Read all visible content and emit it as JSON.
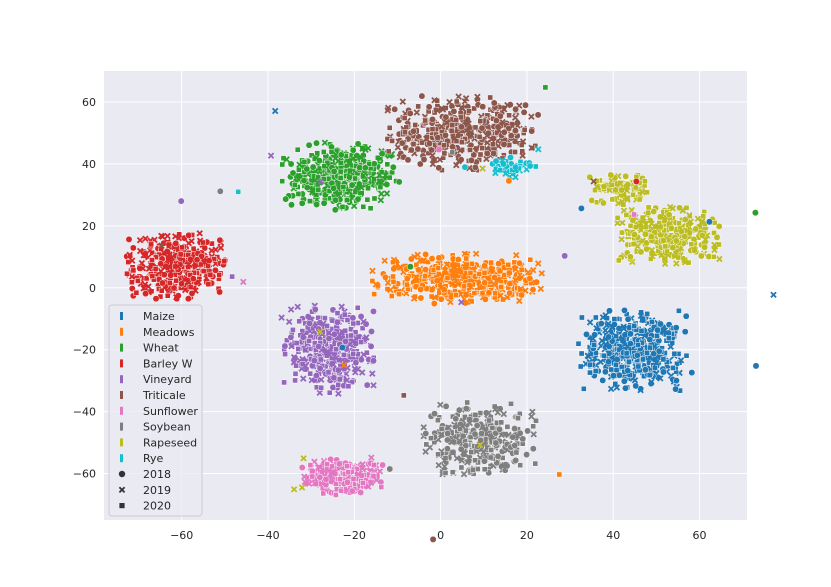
{
  "chart_data": {
    "type": "scatter",
    "title": "",
    "xlabel": "",
    "ylabel": "",
    "xlim": [
      -78,
      71
    ],
    "ylim": [
      -75,
      70
    ],
    "xticks": [
      -60,
      -40,
      -20,
      0,
      20,
      40,
      60
    ],
    "yticks": [
      -60,
      -40,
      -20,
      0,
      20,
      40,
      60
    ],
    "xtick_labels": [
      "−60",
      "−40",
      "−20",
      "0",
      "20",
      "40",
      "60"
    ],
    "ytick_labels": [
      "−60",
      "−40",
      "−20",
      "0",
      "20",
      "40",
      "60"
    ],
    "grid": true,
    "background": "#eaeaf2",
    "legend_position": "lower-left",
    "hue_legend": [
      {
        "label": "Maize",
        "color": "#1f77b4"
      },
      {
        "label": "Meadows",
        "color": "#ff7f0e"
      },
      {
        "label": "Wheat",
        "color": "#2ca02c"
      },
      {
        "label": "Barley W",
        "color": "#d62728"
      },
      {
        "label": "Vineyard",
        "color": "#9467bd"
      },
      {
        "label": "Triticale",
        "color": "#8c564b"
      },
      {
        "label": "Sunflower",
        "color": "#e377c2"
      },
      {
        "label": "Soybean",
        "color": "#7f7f7f"
      },
      {
        "label": "Rapeseed",
        "color": "#bcbd22"
      },
      {
        "label": "Rye",
        "color": "#17becf"
      }
    ],
    "style_legend": [
      {
        "label": "2018",
        "marker": "circle"
      },
      {
        "label": "2019",
        "marker": "x"
      },
      {
        "label": "2020",
        "marker": "square"
      }
    ],
    "clusters": [
      {
        "class": "Maize",
        "color": "#1f77b4",
        "center": [
          45,
          -20
        ],
        "spread": [
          6,
          6
        ],
        "count": 420
      },
      {
        "class": "Meadows",
        "color": "#ff7f0e",
        "center": [
          4,
          3
        ],
        "spread": [
          9,
          3.8
        ],
        "count": 480
      },
      {
        "class": "Wheat",
        "color": "#2ca02c",
        "center": [
          -23,
          36
        ],
        "spread": [
          6.5,
          5
        ],
        "count": 420
      },
      {
        "class": "Barley W",
        "color": "#d62728",
        "center": [
          -61,
          7
        ],
        "spread": [
          5.5,
          5
        ],
        "count": 380
      },
      {
        "class": "Vineyard",
        "color": "#9467bd",
        "center": [
          -26,
          -20
        ],
        "spread": [
          5,
          6.5
        ],
        "count": 400
      },
      {
        "class": "Triticale",
        "color": "#8c564b",
        "center": [
          5,
          50
        ],
        "spread": [
          8,
          5.5
        ],
        "count": 420
      },
      {
        "class": "Sunflower",
        "color": "#e377c2",
        "center": [
          -23,
          -61
        ],
        "spread": [
          4.5,
          2.8
        ],
        "count": 260
      },
      {
        "class": "Soybean",
        "color": "#7f7f7f",
        "center": [
          9,
          -49
        ],
        "spread": [
          6,
          5.5
        ],
        "count": 320
      },
      {
        "class": "Rapeseed",
        "color": "#bcbd22",
        "center": [
          52,
          17
        ],
        "spread": [
          6,
          4.5
        ],
        "count": 300
      },
      {
        "class": "Rapeseed",
        "color": "#bcbd22",
        "center": [
          42,
          32
        ],
        "spread": [
          3.5,
          2.5
        ],
        "count": 90
      },
      {
        "class": "Rye",
        "color": "#17becf",
        "center": [
          17,
          39
        ],
        "spread": [
          2.5,
          1.5
        ],
        "count": 50
      }
    ]
  }
}
